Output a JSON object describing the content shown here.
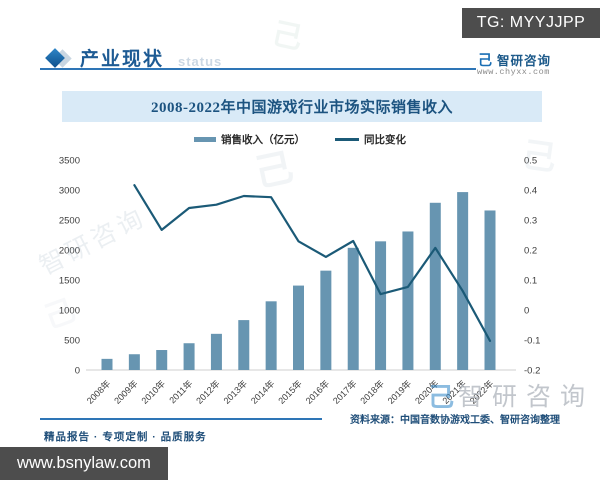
{
  "overlays": {
    "telegram_badge": "TG: MYYJJPP",
    "site_badge": "www.bsnylaw.com"
  },
  "header": {
    "section_title": "产业现状",
    "section_watermark": "status",
    "logo_glyph": "己",
    "brand_name": "智研咨询",
    "brand_site": "www.chyxx.com"
  },
  "chart_data": {
    "type": "bar",
    "subtype": "bar+line-combo",
    "title": "2008-2022年中国游戏行业市场实际销售收入",
    "categories": [
      "2008年",
      "2009年",
      "2010年",
      "2011年",
      "2012年",
      "2013年",
      "2014年",
      "2015年",
      "2016年",
      "2017年",
      "2018年",
      "2019年",
      "2020年",
      "2021年",
      "2022年"
    ],
    "series": [
      {
        "name": "销售收入（亿元）",
        "type": "bar",
        "axis": "left",
        "color": "#6795b1",
        "values": [
          185.6,
          262.8,
          333.0,
          446.1,
          602.8,
          831.7,
          1144.8,
          1407.0,
          1655.7,
          2036.1,
          2144.4,
          2308.8,
          2786.9,
          2965.1,
          2658.8
        ]
      },
      {
        "name": "同比变化",
        "type": "line",
        "axis": "right",
        "color": "#1b5a77",
        "values": [
          null,
          0.416,
          0.267,
          0.34,
          0.351,
          0.38,
          0.376,
          0.229,
          0.177,
          0.23,
          0.053,
          0.077,
          0.207,
          0.064,
          -0.103
        ]
      }
    ],
    "left_axis": {
      "min": 0,
      "max": 3500,
      "step": 500
    },
    "right_axis": {
      "min": -0.2,
      "max": 0.5,
      "step": 0.1
    },
    "legend_position": "top",
    "grid": false
  },
  "watermark": {
    "brand_text": "智研咨询",
    "glyph": "己"
  },
  "footer": {
    "tagline": "精品报告 · 专项定制 · 品质服务",
    "source_note": "资料来源：中国音数协游戏工委、智研咨询整理"
  }
}
